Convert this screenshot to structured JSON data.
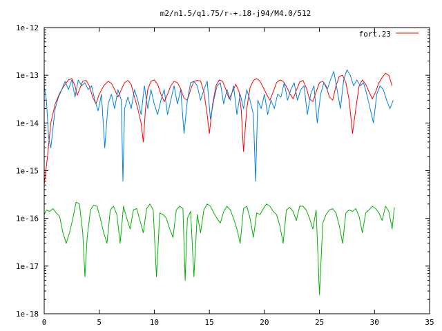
{
  "chart_data": {
    "type": "line",
    "title": "m2/n1.5/q1.75/r-+.18-j94/M4.0/512",
    "xlabel": "",
    "ylabel": "",
    "xlim": [
      0,
      35
    ],
    "ylim": [
      1e-18,
      1e-12
    ],
    "y_scale": "log",
    "x_ticks": [
      "0",
      "5",
      "10",
      "15",
      "20",
      "25",
      "30",
      "35"
    ],
    "y_ticks": [
      "1e-18",
      "1e-17",
      "1e-16",
      "1e-15",
      "1e-14",
      "1e-13",
      "1e-12"
    ],
    "grid": false,
    "legend": {
      "position": "top-right",
      "entries": [
        "fort.23"
      ]
    },
    "series": [
      {
        "name": "fort.23",
        "color": "#ff0000",
        "x": [
          0.0,
          0.3,
          0.6,
          1.0,
          1.4,
          1.8,
          2.2,
          2.5,
          2.8,
          3.0,
          3.2,
          3.5,
          3.8,
          4.1,
          4.4,
          4.7,
          5.0,
          5.4,
          5.8,
          6.1,
          6.4,
          6.7,
          7.0,
          7.3,
          7.6,
          7.9,
          8.2,
          8.5,
          8.8,
          9.0,
          9.2,
          9.4,
          9.7,
          10.0,
          10.3,
          10.6,
          10.9,
          11.2,
          11.5,
          11.8,
          12.1,
          12.4,
          12.7,
          13.0,
          13.3,
          13.6,
          13.9,
          14.2,
          14.5,
          14.8,
          15.0,
          15.3,
          15.6,
          15.9,
          16.2,
          16.5,
          16.8,
          17.1,
          17.4,
          17.7,
          17.9,
          18.1,
          18.4,
          18.7,
          19.0,
          19.3,
          19.6,
          19.9,
          20.2,
          20.5,
          20.8,
          21.1,
          21.4,
          21.7,
          22.0,
          22.3,
          22.6,
          22.9,
          23.2,
          23.5,
          23.8,
          24.1,
          24.4,
          24.7,
          25.0,
          25.3,
          25.6,
          25.9,
          26.2,
          26.5,
          26.8,
          27.1,
          27.4,
          27.7,
          28.0,
          28.3,
          28.6,
          28.9,
          29.2,
          29.5,
          29.8,
          30.1,
          30.4,
          30.7,
          31.0,
          31.3,
          31.6
        ],
        "y": [
          5e-16,
          2e-15,
          1e-14,
          2.5e-14,
          4.2e-14,
          6e-14,
          8e-14,
          8.5e-14,
          6e-14,
          3.8e-14,
          5e-14,
          7.5e-14,
          7.8e-14,
          6e-14,
          3.5e-14,
          2.5e-14,
          4e-14,
          6e-14,
          7.5e-14,
          6.8e-14,
          5e-14,
          3.5e-14,
          5e-14,
          7e-14,
          7.8e-14,
          6.5e-14,
          3.5e-14,
          2e-14,
          1e-14,
          4e-15,
          2e-14,
          5e-14,
          7.5e-14,
          8e-14,
          6.5e-14,
          4e-14,
          2.8e-14,
          4e-14,
          6e-14,
          7.5e-14,
          7e-14,
          5.2e-14,
          3.3e-14,
          3e-14,
          5e-14,
          7.5e-14,
          7.8e-14,
          7.6e-14,
          4.5e-14,
          1.5e-14,
          6e-15,
          2.5e-14,
          6e-14,
          8e-14,
          7.5e-14,
          5e-14,
          3.2e-14,
          4.5e-14,
          6.5e-14,
          4.5e-14,
          1.8e-14,
          2.5e-15,
          2e-14,
          5.5e-14,
          7.8e-14,
          8.5e-14,
          7.5e-14,
          5.5e-14,
          4e-14,
          3e-14,
          4.5e-14,
          7e-14,
          8e-14,
          7.5e-14,
          5.8e-14,
          4.2e-14,
          3.2e-14,
          4.8e-14,
          7.2e-14,
          7.8e-14,
          5.5e-14,
          3.2e-14,
          2.8e-14,
          4.5e-14,
          7e-14,
          7.5e-14,
          6e-14,
          3.5e-14,
          3e-14,
          6e-14,
          9.5e-14,
          1e-13,
          7e-14,
          3e-14,
          6e-15,
          2e-14,
          6e-14,
          8e-14,
          6.5e-14,
          4.5e-14,
          3.2e-14,
          4.5e-14,
          7e-14,
          9e-14,
          1.1e-13,
          1e-13,
          6e-14
        ]
      },
      {
        "name": "",
        "color": "#0080e0",
        "x": [
          0.0,
          0.2,
          0.4,
          0.6,
          0.8,
          1.0,
          1.3,
          1.6,
          1.9,
          2.2,
          2.5,
          2.8,
          3.1,
          3.4,
          3.7,
          4.0,
          4.3,
          4.6,
          4.9,
          5.2,
          5.5,
          5.8,
          6.1,
          6.4,
          6.7,
          7.0,
          7.15,
          7.3,
          7.6,
          7.9,
          8.2,
          8.5,
          8.8,
          9.1,
          9.4,
          9.7,
          10.0,
          10.3,
          10.6,
          10.9,
          11.2,
          11.5,
          11.8,
          12.1,
          12.4,
          12.7,
          13.0,
          13.3,
          13.6,
          13.9,
          14.2,
          14.5,
          14.8,
          15.1,
          15.4,
          15.7,
          16.0,
          16.3,
          16.6,
          16.9,
          17.2,
          17.5,
          17.8,
          18.1,
          18.4,
          18.7,
          19.0,
          19.2,
          19.4,
          19.7,
          20.0,
          20.3,
          20.6,
          20.9,
          21.2,
          21.5,
          21.8,
          22.1,
          22.4,
          22.7,
          23.0,
          23.3,
          23.6,
          23.9,
          24.2,
          24.5,
          24.8,
          25.1,
          25.4,
          25.7,
          26.0,
          26.3,
          26.6,
          26.9,
          27.2,
          27.5,
          27.8,
          28.1,
          28.4,
          28.7,
          29.0,
          29.3,
          29.6,
          29.9,
          30.2,
          30.5,
          30.8,
          31.1,
          31.4,
          31.7
        ],
        "y": [
          6e-14,
          3e-14,
          5e-15,
          3e-15,
          8e-15,
          2e-14,
          3.5e-14,
          5e-14,
          7.5e-14,
          5e-14,
          8e-14,
          3.5e-14,
          8e-14,
          6e-14,
          7e-14,
          5e-14,
          6e-14,
          3e-14,
          1.8e-14,
          4e-14,
          3e-15,
          2.5e-14,
          4e-14,
          2e-14,
          5e-14,
          3e-14,
          6e-16,
          2e-14,
          3.5e-14,
          2e-14,
          5e-14,
          3e-14,
          1.5e-14,
          6e-14,
          2e-14,
          5e-14,
          2.5e-14,
          1.5e-14,
          3e-14,
          5e-14,
          1.5e-14,
          3e-14,
          6e-14,
          2.5e-14,
          5e-14,
          6e-15,
          3e-14,
          7e-14,
          7.5e-14,
          6e-14,
          3e-14,
          5e-14,
          7.5e-14,
          1.2e-14,
          3e-14,
          6e-14,
          7e-14,
          2.5e-14,
          5e-14,
          3e-14,
          6e-14,
          1.5e-14,
          4e-14,
          2e-14,
          5e-14,
          3e-14,
          1.5e-14,
          6e-16,
          3e-14,
          2e-14,
          4e-14,
          1.5e-14,
          3e-14,
          2e-14,
          4e-14,
          3.5e-14,
          7e-14,
          3e-14,
          5e-14,
          7e-14,
          3e-14,
          5e-14,
          6e-14,
          1.5e-14,
          4e-14,
          6e-14,
          1e-14,
          4e-14,
          7e-14,
          5e-14,
          8e-14,
          1.2e-13,
          5e-14,
          2e-14,
          8e-14,
          1.3e-13,
          1e-13,
          6e-14,
          8e-14,
          6e-14,
          7e-14,
          4e-14,
          2e-14,
          1e-14,
          4e-14,
          6e-14,
          5e-14,
          3e-14,
          2e-14,
          3e-14
        ]
      },
      {
        "name": "",
        "color": "#00b000",
        "x": [
          0.0,
          0.2,
          0.5,
          0.8,
          1.1,
          1.4,
          1.7,
          2.0,
          2.3,
          2.6,
          2.9,
          3.2,
          3.5,
          3.7,
          3.9,
          4.2,
          4.5,
          4.8,
          5.1,
          5.4,
          5.7,
          6.0,
          6.3,
          6.6,
          6.9,
          7.2,
          7.5,
          7.8,
          8.1,
          8.4,
          8.7,
          9.0,
          9.3,
          9.6,
          9.9,
          10.2,
          10.5,
          10.8,
          11.1,
          11.4,
          11.7,
          12.0,
          12.3,
          12.6,
          12.8,
          13.0,
          13.3,
          13.6,
          13.9,
          14.2,
          14.5,
          14.8,
          15.1,
          15.4,
          15.7,
          16.0,
          16.3,
          16.6,
          16.9,
          17.2,
          17.5,
          17.8,
          18.1,
          18.4,
          18.7,
          19.0,
          19.3,
          19.6,
          19.9,
          20.2,
          20.5,
          20.8,
          21.1,
          21.4,
          21.7,
          22.0,
          22.3,
          22.6,
          22.9,
          23.2,
          23.5,
          23.8,
          24.1,
          24.4,
          24.7,
          25.0,
          25.3,
          25.6,
          25.9,
          26.2,
          26.5,
          26.8,
          27.1,
          27.4,
          27.7,
          28.0,
          28.3,
          28.6,
          28.9,
          29.2,
          29.5,
          29.8,
          30.1,
          30.4,
          30.7,
          31.0,
          31.3,
          31.6,
          31.8
        ],
        "y": [
          1.2e-16,
          1.5e-16,
          1.4e-16,
          1.6e-16,
          1.3e-16,
          1.1e-16,
          5e-17,
          3e-17,
          5e-17,
          1e-16,
          2.2e-16,
          2e-16,
          5e-17,
          6e-18,
          4e-17,
          1.5e-16,
          1.9e-16,
          1.8e-16,
          1e-16,
          5e-17,
          3e-17,
          1.5e-16,
          1.8e-16,
          1.2e-16,
          3e-17,
          1.8e-16,
          1e-16,
          6e-17,
          1.5e-16,
          1.6e-16,
          9e-17,
          5e-17,
          1.6e-16,
          2e-16,
          1.5e-16,
          6e-18,
          1.3e-16,
          1.2e-16,
          1e-16,
          6e-17,
          4e-17,
          1.5e-16,
          1.8e-16,
          1.6e-16,
          5e-18,
          1e-16,
          1.4e-16,
          6e-18,
          1.2e-16,
          5e-17,
          1.5e-16,
          2e-16,
          1.8e-16,
          1.3e-16,
          1e-16,
          8e-17,
          1.4e-16,
          1.8e-16,
          1.5e-16,
          1e-16,
          6e-17,
          3e-17,
          1.6e-16,
          1.8e-16,
          1e-16,
          4e-17,
          1.3e-16,
          1.2e-16,
          1.6e-16,
          2e-16,
          1.8e-16,
          1.4e-16,
          1.2e-16,
          7e-17,
          3e-17,
          1.5e-16,
          1.7e-16,
          1.4e-16,
          9e-17,
          1.8e-16,
          1.8e-16,
          1.5e-16,
          1e-16,
          6e-17,
          1.5e-16,
          2.5e-18,
          8e-17,
          1.2e-16,
          1.5e-16,
          1.6e-16,
          1.3e-16,
          7e-17,
          3e-17,
          1.3e-16,
          1.5e-16,
          1.4e-16,
          1.6e-16,
          1.1e-16,
          5e-17,
          1.3e-16,
          1.5e-16,
          1.8e-16,
          1.6e-16,
          1.3e-16,
          9e-17,
          1.8e-16,
          1.4e-16,
          6e-17,
          1.7e-16
        ]
      }
    ]
  }
}
